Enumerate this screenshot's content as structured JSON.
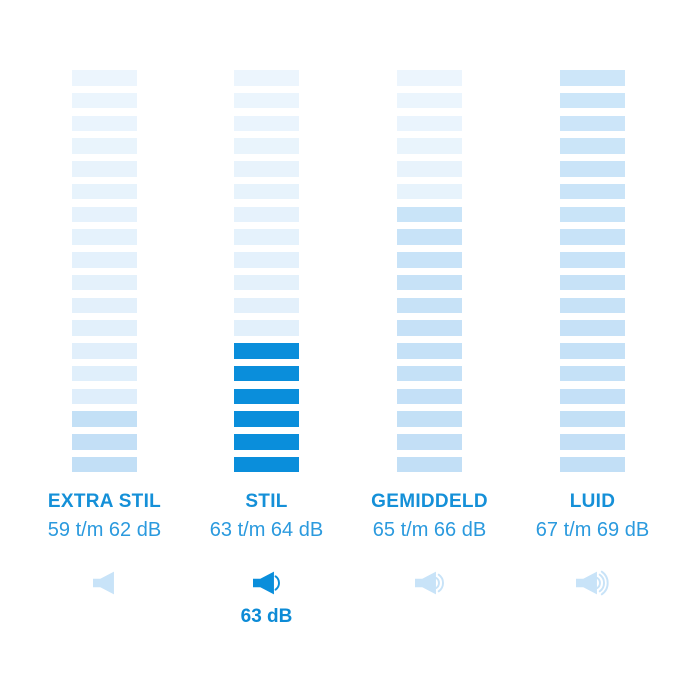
{
  "colors": {
    "accent": "#0a8edb",
    "bar_filled_light_top": "#cde6f9",
    "bar_filled_light_bottom": "#c2dff6",
    "bar_empty_top": "#ecf5fd",
    "bar_empty_bottom": "#dcedfa",
    "label_text": "#1590d8",
    "range_text": "#2b9ade",
    "value_text": "#0d8bd6",
    "background": "#ffffff"
  },
  "columns": [
    {
      "id": "extra-stil",
      "label": "EXTRA STIL",
      "range": "59 t/m 62 dB",
      "filled": 3,
      "selected": false,
      "waves": 0
    },
    {
      "id": "stil",
      "label": "STIL",
      "range": "63 t/m 64 dB",
      "filled": 6,
      "selected": true,
      "waves": 1,
      "value_label": "63 dB"
    },
    {
      "id": "gemiddeld",
      "label": "GEMIDDELD",
      "range": "65 t/m 66 dB",
      "filled": 12,
      "selected": false,
      "waves": 2
    },
    {
      "id": "luid",
      "label": "LUID",
      "range": "67 t/m 69 dB",
      "filled": 18,
      "selected": false,
      "waves": 3
    }
  ],
  "chart_data": {
    "type": "bar",
    "subtype": "segmented-noise-level-columns",
    "title": "",
    "categories": [
      "EXTRA STIL",
      "STIL",
      "GEMIDDELD",
      "LUID"
    ],
    "ranges_db": [
      "59 t/m 62 dB",
      "63 t/m 64 dB",
      "65 t/m 66 dB",
      "67 t/m 69 dB"
    ],
    "segments_total_per_column": 18,
    "segments_filled": [
      3,
      6,
      12,
      18
    ],
    "highlighted_category": "STIL",
    "highlighted_value": "63 dB",
    "speaker_wave_counts": [
      0,
      1,
      2,
      3
    ],
    "grid": false,
    "legend_position": "none"
  }
}
